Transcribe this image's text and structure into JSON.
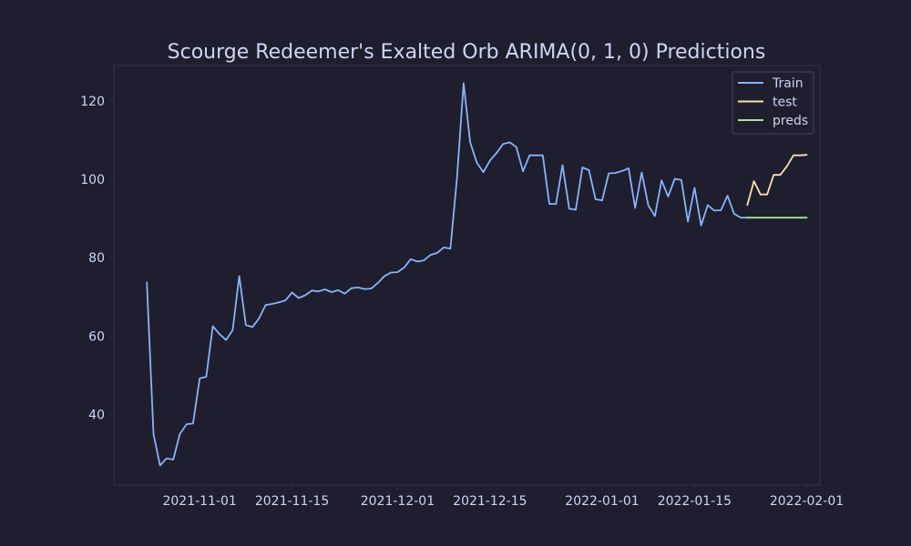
{
  "colors": {
    "background": "#1e1e2e",
    "text": "#cdd6f4",
    "axes_border": "#313244",
    "legend_bg": "#1e1e2e",
    "legend_border": "#45475a"
  },
  "chart_data": {
    "type": "line",
    "title": "Scourge Redeemer's Exalted Orb ARIMA(0, 1, 0) Predictions",
    "xlabel": "",
    "ylabel": "",
    "grid": false,
    "legend_position": "top-right",
    "xlim": [
      "2021-10-19",
      "2022-02-03"
    ],
    "ylim": [
      22,
      129
    ],
    "x_ticks": [
      "2021-11-01",
      "2021-11-15",
      "2021-12-01",
      "2021-12-15",
      "2022-01-01",
      "2022-01-15",
      "2022-02-01"
    ],
    "y_ticks": [
      40,
      60,
      80,
      100,
      120
    ],
    "series": [
      {
        "name": "Train",
        "color": "#89b4fa",
        "start_date": "2021-10-24",
        "values": [
          73.7,
          35.0,
          27.0,
          28.8,
          28.5,
          35.0,
          37.5,
          37.7,
          49.2,
          49.6,
          62.5,
          60.5,
          59.0,
          61.5,
          75.3,
          62.8,
          62.3,
          64.5,
          67.9,
          68.2,
          68.6,
          69.1,
          71.1,
          69.7,
          70.4,
          71.6,
          71.4,
          71.9,
          71.2,
          71.7,
          70.8,
          72.2,
          72.4,
          72.0,
          72.1,
          73.5,
          75.3,
          76.2,
          76.3,
          77.5,
          79.6,
          79.0,
          79.3,
          80.7,
          81.2,
          82.6,
          82.3,
          100.2,
          124.5,
          109.4,
          104.2,
          101.8,
          104.8,
          106.7,
          109.0,
          109.4,
          108.2,
          102.0,
          106.1,
          106.1,
          106.1,
          93.7,
          93.7,
          103.6,
          92.5,
          92.2,
          103.0,
          102.3,
          94.9,
          94.6,
          101.5,
          101.6,
          102.1,
          102.8,
          92.7,
          101.7,
          93.3,
          90.6,
          99.7,
          95.6,
          100.1,
          99.8,
          89.2,
          97.8,
          88.2,
          93.4,
          92.0,
          92.1,
          95.8,
          91.2,
          90.2,
          90.2
        ]
      },
      {
        "name": "test",
        "color": "#f9e2af",
        "start_date": "2022-01-23",
        "values": [
          93.4,
          99.5,
          96.1,
          96.1,
          101.1,
          101.1,
          103.3,
          106.1,
          106.1,
          106.2
        ]
      },
      {
        "name": "preds",
        "color": "#a6e3a1",
        "start_date": "2022-01-23",
        "values": [
          90.2,
          90.2,
          90.2,
          90.2,
          90.2,
          90.2,
          90.2,
          90.2,
          90.2,
          90.2
        ]
      }
    ]
  }
}
